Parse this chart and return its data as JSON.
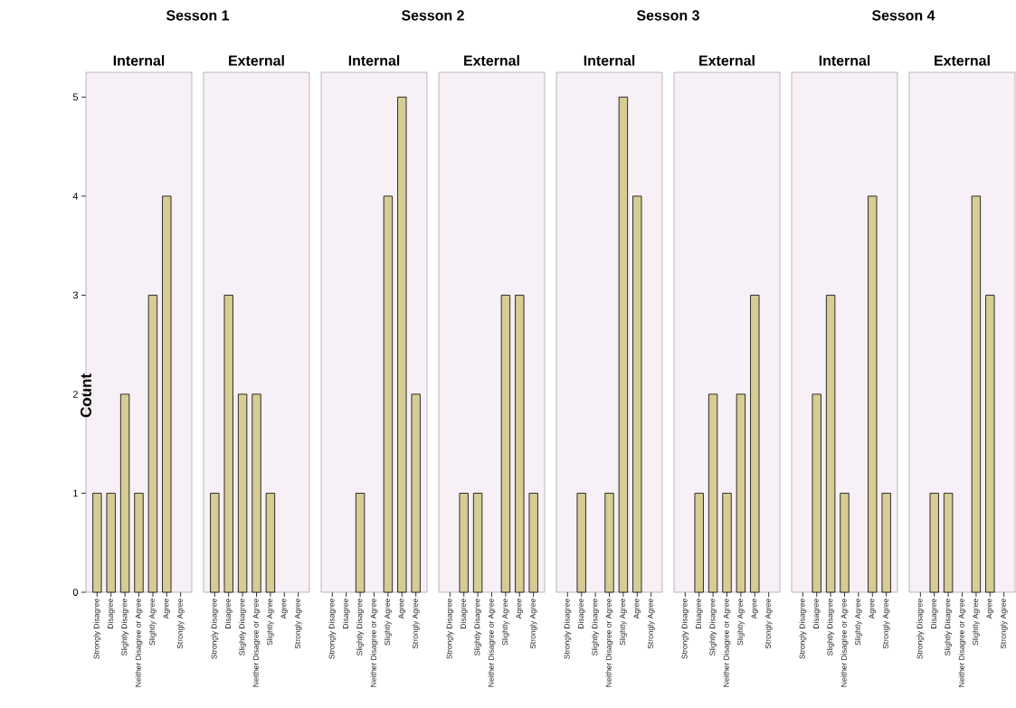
{
  "chart_data": [
    {
      "type": "bar",
      "title": "Sesson 1",
      "subtitle": "Internal",
      "ylabel": "Count",
      "categories": [
        "Strongly Disagree",
        "Disagree",
        "Slightly Disagree",
        "Neither Disagree or Agree",
        "Slightly Agree",
        "Agree",
        "Strongly Agree"
      ],
      "values": [
        1,
        1,
        2,
        1,
        3,
        4,
        null
      ],
      "color": "#d6cc94",
      "ylim": [
        0,
        5.25
      ],
      "yticks": [
        0,
        1,
        2,
        3,
        4,
        5
      ]
    },
    {
      "type": "bar",
      "subtitle": "External",
      "categories": [
        "Strongly Disagree",
        "Disagree",
        "Slightly Disagree",
        "Neither Disagree or Agree",
        "Slightly Agree",
        "Agree",
        "Strongly Agree"
      ],
      "values": [
        1,
        3,
        2,
        2,
        1,
        null,
        null
      ],
      "color": "#d6cc94",
      "ylim": [
        0,
        5.25
      ],
      "tick_labels": "x"
    },
    {
      "type": "bar",
      "title": "Sesson 2",
      "subtitle": "Internal",
      "categories": [
        "Strongly Disagree",
        "Disagree",
        "Slightly Disagree",
        "Neither Disagree or Agree",
        "Slightly Agree",
        "Agree",
        "Strongly Agree"
      ],
      "values": [
        null,
        null,
        1,
        null,
        4,
        5,
        2
      ],
      "color": "#d6cc94",
      "ylim": [
        0,
        5.25
      ],
      "tick_labels": "x"
    },
    {
      "type": "bar",
      "subtitle": "External",
      "categories": [
        "Strongly Disagree",
        "Disagree",
        "Slightly Disagree",
        "Neither Disagree or Agree",
        "Slightly Agree",
        "Agree",
        "Strongly Agree"
      ],
      "values": [
        null,
        1,
        1,
        null,
        3,
        3,
        1
      ],
      "color": "#d6cc94",
      "ylim": [
        0,
        5.25
      ],
      "tick_labels": "x"
    },
    {
      "type": "bar",
      "title": "Sesson 3",
      "subtitle": "Internal",
      "categories": [
        "Strongly Disagree",
        "Disagree",
        "Slightly Disagree",
        "Neither Disagree or Agree",
        "Slightly Agree",
        "Agree",
        "Strongly Agree"
      ],
      "values": [
        null,
        1,
        null,
        1,
        5,
        4,
        null
      ],
      "color": "#d6cc94",
      "ylim": [
        0,
        5.25
      ],
      "tick_labels": "x"
    },
    {
      "type": "bar",
      "subtitle": "External",
      "categories": [
        "Strongly Disagree",
        "Disagree",
        "Slightly Disagree",
        "Neither Disagree or Agree",
        "Slightly Agree",
        "Agree",
        "Strongly Agree"
      ],
      "values": [
        null,
        1,
        2,
        1,
        2,
        3,
        null
      ],
      "color": "#d6cc94",
      "ylim": [
        0,
        5.25
      ],
      "tick_labels": "x"
    },
    {
      "type": "bar",
      "title": "Sesson 4",
      "subtitle": "Internal",
      "categories": [
        "Strongly Disagree",
        "Disagree",
        "Slightly Disagree",
        "Neither Disagree or Agree",
        "Slightly Agree",
        "Agree",
        "Strongly Agree"
      ],
      "values": [
        null,
        2,
        3,
        1,
        null,
        4,
        1
      ],
      "color": "#d6cc94",
      "ylim": [
        0,
        5.25
      ],
      "tick_labels": "x"
    },
    {
      "type": "bar",
      "subtitle": "External",
      "categories": [
        "Strongly Disagree",
        "Disagree",
        "Slightly Disagree",
        "Neither Disagree or Agree",
        "Slightly Agree",
        "Agree",
        "Strongly Agree"
      ],
      "values": [
        null,
        1,
        1,
        null,
        4,
        3,
        null
      ],
      "color": "#d6cc94",
      "ylim": [
        0,
        5.25
      ],
      "tick_labels": "x"
    }
  ]
}
